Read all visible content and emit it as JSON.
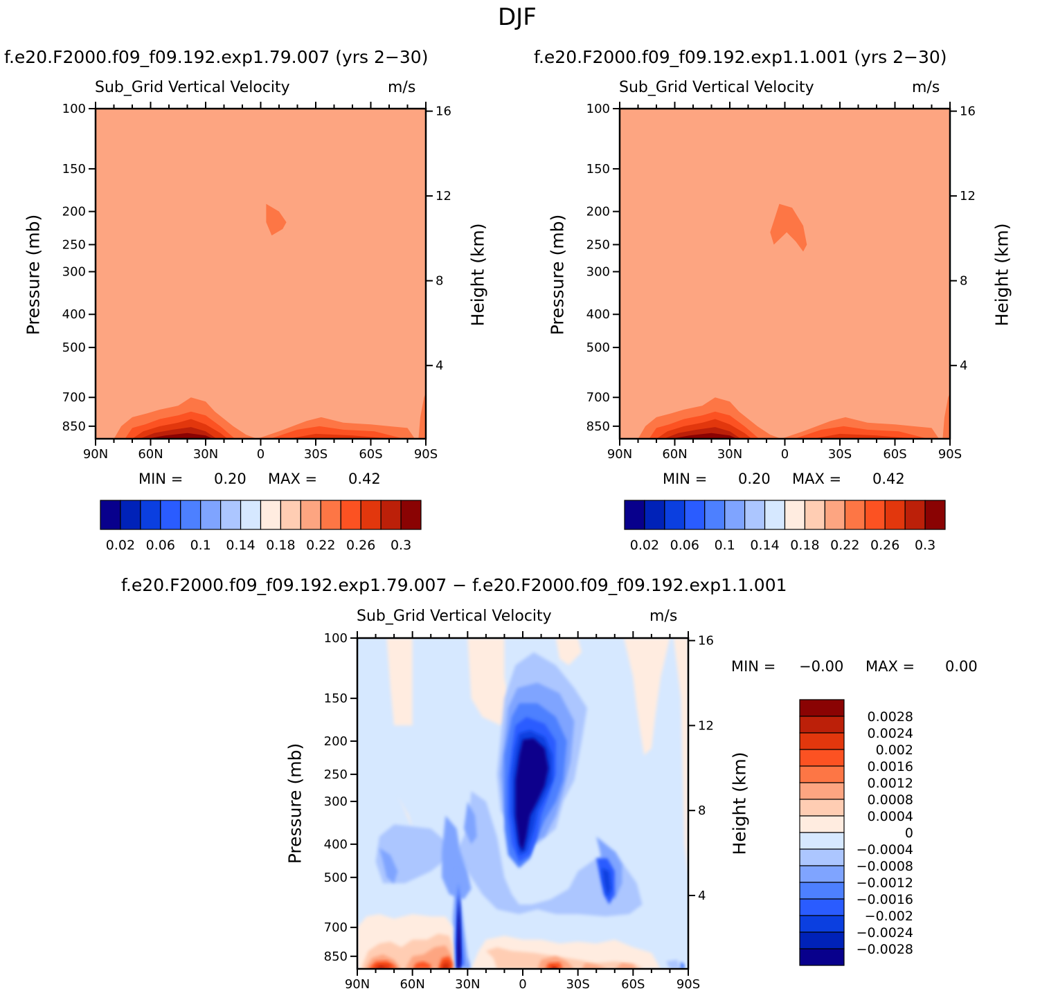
{
  "figure": {
    "title": "DJF"
  },
  "panels": [
    {
      "id": "left",
      "case_title": "f.e20.F2000.f09_f09.192.exp1.79.007 (yrs 2−30)",
      "variable": "Sub_Grid Vertical Velocity",
      "units": "m/s",
      "ylabel": "Pressure (mb)",
      "ylabel_right": "Height (km)",
      "stats": {
        "min_label": "MIN =",
        "min": "0.20",
        "max_label": "MAX =",
        "max": "0.42"
      }
    },
    {
      "id": "right",
      "case_title": "f.e20.F2000.f09_f09.192.exp1.1.001 (yrs 2−30)",
      "variable": "Sub_Grid Vertical Velocity",
      "units": "m/s",
      "ylabel": "Pressure (mb)",
      "ylabel_right": "Height (km)",
      "stats": {
        "min_label": "MIN =",
        "min": "0.20",
        "max_label": "MAX =",
        "max": "0.42"
      }
    },
    {
      "id": "diff",
      "case_title": "f.e20.F2000.f09_f09.192.exp1.79.007 − f.e20.F2000.f09_f09.192.exp1.1.001",
      "variable": "Sub_Grid Vertical Velocity",
      "units": "m/s",
      "ylabel": "Pressure (mb)",
      "ylabel_right": "Height (km)",
      "stats": {
        "min_label": "MIN =",
        "min": "−0.00",
        "max_label": "MAX =",
        "max": "0.00"
      }
    }
  ],
  "chart_data": [
    {
      "type": "heatmap",
      "panel": "left",
      "title": "Sub_Grid Vertical Velocity",
      "x_ticks": [
        "90N",
        "60N",
        "30N",
        "0",
        "30S",
        "60S",
        "90S"
      ],
      "x_range": [
        90,
        -90
      ],
      "y_ticks": [
        "100",
        "150",
        "200",
        "250",
        "300",
        "400",
        "500",
        "700",
        "850"
      ],
      "y_range_mb": [
        100,
        925
      ],
      "height_ticks": [
        "16",
        "12",
        "8",
        "4"
      ],
      "background_value": 0.22,
      "min": 0.2,
      "max": 0.42,
      "colorbar_levels": [
        0.02,
        0.04,
        0.06,
        0.08,
        0.1,
        0.12,
        0.14,
        0.16,
        0.18,
        0.2,
        0.22,
        0.24,
        0.26,
        0.28,
        0.3
      ],
      "colorbar_labels": [
        "0.02",
        "0.06",
        "0.1",
        "0.14",
        "0.18",
        "0.22",
        "0.26",
        "0.3"
      ],
      "colors": [
        "#08008c",
        "#0022b8",
        "#0b3fe0",
        "#2a5cff",
        "#4d80ff",
        "#7fa4ff",
        "#acc6ff",
        "#d6e8ff",
        "#ffece0",
        "#ffcdb3",
        "#fda581",
        "#fd7645",
        "#fc5222",
        "#e2370d",
        "#bc2009",
        "#8a0303"
      ]
    },
    {
      "type": "heatmap",
      "panel": "right",
      "title": "Sub_Grid Vertical Velocity",
      "x_ticks": [
        "90N",
        "60N",
        "30N",
        "0",
        "30S",
        "60S",
        "90S"
      ],
      "x_range": [
        90,
        -90
      ],
      "y_ticks": [
        "100",
        "150",
        "200",
        "250",
        "300",
        "400",
        "500",
        "700",
        "850"
      ],
      "y_range_mb": [
        100,
        925
      ],
      "height_ticks": [
        "16",
        "12",
        "8",
        "4"
      ],
      "background_value": 0.22,
      "min": 0.2,
      "max": 0.42,
      "colorbar_levels": [
        0.02,
        0.04,
        0.06,
        0.08,
        0.1,
        0.12,
        0.14,
        0.16,
        0.18,
        0.2,
        0.22,
        0.24,
        0.26,
        0.28,
        0.3
      ],
      "colorbar_labels": [
        "0.02",
        "0.06",
        "0.1",
        "0.14",
        "0.18",
        "0.22",
        "0.26",
        "0.3"
      ],
      "colors": [
        "#08008c",
        "#0022b8",
        "#0b3fe0",
        "#2a5cff",
        "#4d80ff",
        "#7fa4ff",
        "#acc6ff",
        "#d6e8ff",
        "#ffece0",
        "#ffcdb3",
        "#fda581",
        "#fd7645",
        "#fc5222",
        "#e2370d",
        "#bc2009",
        "#8a0303"
      ]
    },
    {
      "type": "heatmap",
      "panel": "diff",
      "title": "Sub_Grid Vertical Velocity",
      "x_ticks": [
        "90N",
        "60N",
        "30N",
        "0",
        "30S",
        "60S",
        "90S"
      ],
      "x_range": [
        90,
        -90
      ],
      "y_ticks": [
        "100",
        "150",
        "200",
        "250",
        "300",
        "400",
        "500",
        "700",
        "850"
      ],
      "y_range_mb": [
        100,
        925
      ],
      "height_ticks": [
        "16",
        "12",
        "8",
        "4"
      ],
      "min": -0.0,
      "max": 0.0,
      "colorbar_levels": [
        -0.0028,
        -0.0024,
        -0.002,
        -0.0016,
        -0.0012,
        -0.0008,
        -0.0004,
        0,
        0.0004,
        0.0008,
        0.0012,
        0.0016,
        0.002,
        0.0024,
        0.0028
      ],
      "colorbar_labels": [
        "0.0028",
        "0.0024",
        "0.002",
        "0.0016",
        "0.0012",
        "0.0008",
        "0.0004",
        "0",
        "−0.0004",
        "−0.0008",
        "−0.0012",
        "−0.0016",
        "−0.002",
        "−0.0024",
        "−0.0028"
      ],
      "colors": [
        "#8a0303",
        "#bc2009",
        "#e2370d",
        "#fc5222",
        "#fd7645",
        "#fda581",
        "#ffcdb3",
        "#ffece0",
        "#d6e8ff",
        "#acc6ff",
        "#7fa4ff",
        "#4d80ff",
        "#2a5cff",
        "#0b3fe0",
        "#0022b8",
        "#08008c"
      ]
    }
  ]
}
